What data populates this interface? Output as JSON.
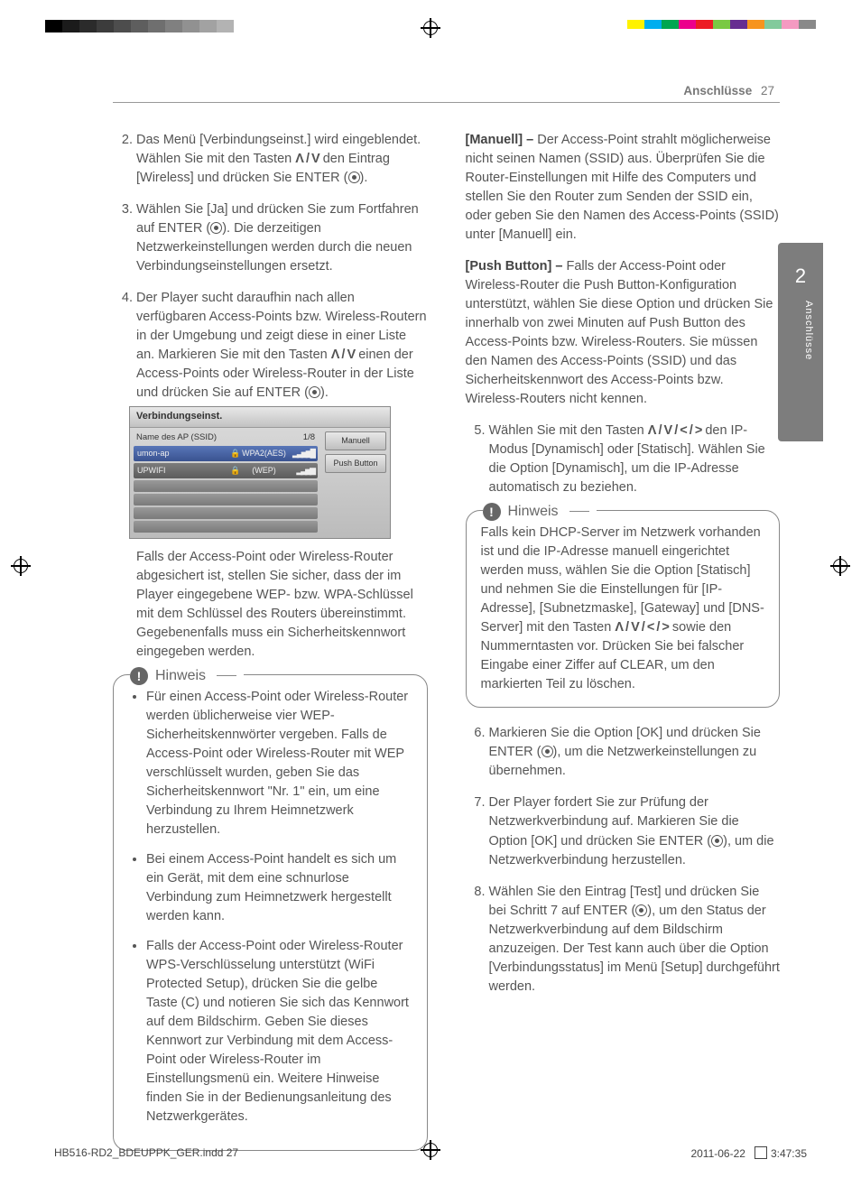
{
  "page": {
    "section": "Anschlüsse",
    "number": "27",
    "side_tab_num": "2",
    "side_tab_label": "Anschlüsse"
  },
  "reg_colors_left": [
    "#000000",
    "#1b1b1b",
    "#2b2b2b",
    "#3c3c3c",
    "#4d4d4d",
    "#5e5e5e",
    "#6f6f6f",
    "#808080",
    "#919191",
    "#a2a2a2",
    "#b3b3b3"
  ],
  "reg_colors_right": [
    "#ffffff",
    "#fff200",
    "#00aeef",
    "#00a651",
    "#ec008c",
    "#ed1c24",
    "#7ac943",
    "#662d91",
    "#f7941d",
    "#82ca9c",
    "#f49ac1",
    "#898989"
  ],
  "left_col": {
    "li2_a": "Das Menü [Verbindungseinst.] wird eingeblendet. Wählen Sie mit den Tasten ",
    "li2_arrows": "Λ / V",
    "li2_b": " den Eintrag [Wireless] und drücken Sie ENTER (",
    "li2_c": ").",
    "li3_a": "Wählen Sie [Ja] und drücken Sie zum Fortfahren auf ENTER (",
    "li3_b": "). Die derzeitigen Netzwerkeinstellungen werden durch die neuen Verbindungseinstellungen ersetzt.",
    "li4_a": "Der Player sucht daraufhin nach allen verfügbaren Access-Points bzw. Wireless-Routern in der Umgebung und zeigt diese in einer Liste an. Markieren Sie mit den Tasten ",
    "li4_arrows": "Λ / V",
    "li4_b": " einen der Access-Points oder Wireless-Router in der Liste und drücken Sie auf ENTER (",
    "li4_c": ").",
    "shot": {
      "title": "Verbindungseinst.",
      "col_ssid": "Name des AP (SSID)",
      "col_page": "1/8",
      "rows": [
        {
          "ssid": "umon-ap",
          "lock": "🔒",
          "enc": "WPA2(AES)",
          "sig": "▂▃▅▆█",
          "sel": true
        },
        {
          "ssid": "UPWIFI",
          "lock": "🔒",
          "enc": "(WEP)",
          "sig": "▂▃▅▆",
          "sel": false
        }
      ],
      "btn1": "Manuell",
      "btn2": "Push Button"
    },
    "after_shot": "Falls der Access-Point oder Wireless-Router abgesichert ist, stellen Sie sicher, dass der im Player eingegebene WEP- bzw. WPA-Schlüssel mit dem Schlüssel des Routers übereinstimmt. Gegebenenfalls muss ein Sicherheitskennwort eingegeben werden.",
    "note_title": "Hinweis",
    "note_items": [
      "Für einen Access-Point oder Wireless-Router werden üblicherweise vier WEP-Sicherheitskennwörter vergeben. Falls de Access-Point oder Wireless-Router mit WEP verschlüsselt wurden, geben Sie das Sicherheitskennwort \"Nr. 1\" ein, um eine Verbindung zu Ihrem Heimnetzwerk herzustellen.",
      "Bei einem Access-Point handelt es sich um ein Gerät, mit dem eine schnurlose Verbindung zum Heimnetzwerk hergestellt werden kann.",
      "Falls der Access-Point oder Wireless-Router WPS-Verschlüsselung unterstützt (WiFi Protected Setup), drücken Sie die gelbe Taste (C) und notieren Sie sich das Kennwort auf dem Bildschirm. Geben Sie dieses Kennwort zur Verbindung mit dem Access-Point oder Wireless-Router im Einstellungsmenü ein. Weitere Hinweise finden Sie in der Bedienungsanleitung des Netzwerkgerätes."
    ]
  },
  "right_col": {
    "manuell_label": "[Manuell] –",
    "manuell_text": " Der Access-Point strahlt möglicherweise nicht seinen Namen (SSID) aus. Überprüfen Sie die Router-Einstellungen mit Hilfe des Computers und stellen Sie den Router zum Senden der SSID ein, oder geben Sie den Namen des Access-Points (SSID) unter [Manuell] ein.",
    "push_label": "[Push Button] –",
    "push_text": " Falls der Access-Point oder Wireless-Router die Push Button-Konfiguration unterstützt, wählen Sie diese Option und drücken Sie innerhalb von zwei Minuten auf Push Button des Access-Points bzw. Wireless-Routers. Sie müssen den Namen des Access-Points (SSID) und das Sicherheitskennwort des Access-Points bzw. Wireless-Routers nicht kennen.",
    "li5_a": "Wählen Sie mit den Tasten ",
    "li5_arrows": "Λ / V / < / >",
    "li5_b": " den IP-Modus [Dynamisch] oder [Statisch]. Wählen Sie die Option [Dynamisch], um die IP-Adresse automatisch zu beziehen.",
    "note_title": "Hinweis",
    "note_text_a": "Falls kein DHCP-Server im Netzwerk vorhanden ist und die IP-Adresse manuell eingerichtet werden muss, wählen Sie die Option [Statisch] und nehmen Sie die Einstellungen für [IP-Adresse], [Subnetzmaske], [Gateway] und [DNS-Server] mit den Tasten ",
    "note_arrows": "Λ / V / < / >",
    "note_text_b": " sowie den Nummerntasten vor. Drücken Sie bei falscher Eingabe einer Ziffer auf CLEAR, um den markierten Teil zu löschen.",
    "li6_a": "Markieren Sie die Option [OK] und drücken Sie ENTER (",
    "li6_b": "), um die Netzwerkeinstellungen zu übernehmen.",
    "li7_a": "Der Player fordert Sie zur Prüfung der Netzwerkverbindung auf. Markieren Sie die Option [OK] und drücken Sie ENTER (",
    "li7_b": "), um die Netzwerkverbindung herzustellen.",
    "li8_a": "Wählen Sie den Eintrag [Test] und drücken Sie bei Schritt 7 auf ENTER (",
    "li8_b": "), um den Status der Netzwerkverbindung auf dem Bildschirm anzuzeigen. Der Test kann auch über die Option [Verbindungsstatus] im Menü [Setup] durchgeführt werden."
  },
  "footer": {
    "file": "HB516-RD2_BDEUPPK_GER.indd   27",
    "date": "2011-06-22",
    "time": "3:47:35"
  }
}
